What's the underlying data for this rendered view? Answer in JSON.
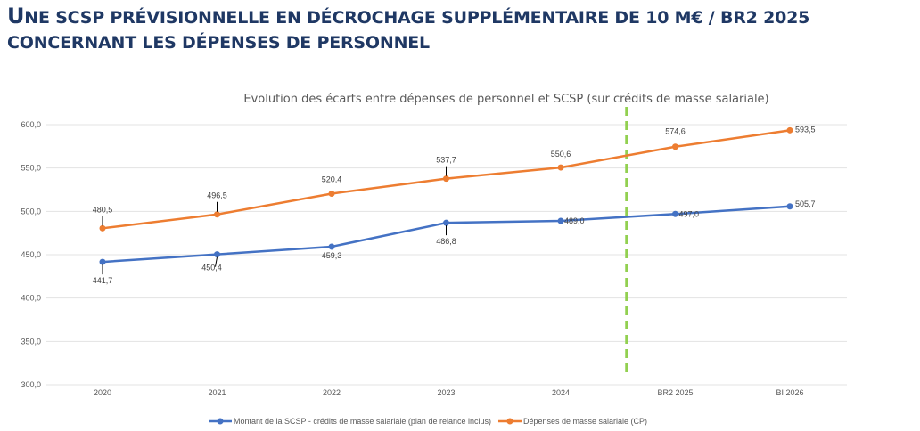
{
  "slide": {
    "title_line1_prefix_big": "U",
    "title_line1_rest": "NE SCSP PRÉVISIONNELLE EN DÉCROCHAGE SUPPLÉMENTAIRE DE 10 M€ / BR2 2025",
    "title_line2": "CONCERNANT LES DÉPENSES DE PERSONNEL"
  },
  "colors": {
    "title": "#1f3864",
    "series_scsp": "#4472c4",
    "series_depenses": "#ed7d31",
    "forecast_divider": "#92d050"
  },
  "chart_data": {
    "type": "line",
    "title": "Evolution des écarts entre dépenses de personnel et SCSP (sur crédits de masse salariale)",
    "xlabel": "",
    "ylabel": "",
    "categories": [
      "2020",
      "2021",
      "2022",
      "2023",
      "2024",
      "BR2 2025",
      "BI 2026"
    ],
    "ylim": [
      300,
      600
    ],
    "yticks": [
      300,
      350,
      400,
      450,
      500,
      550,
      600
    ],
    "ytick_labels": [
      "300,0",
      "350,0",
      "400,0",
      "450,0",
      "500,0",
      "550,0",
      "600,0"
    ],
    "grid": true,
    "legend_position": "bottom",
    "series": [
      {
        "name": "Montant de la SCSP - crédits de masse salariale (plan de relance inclus)",
        "color": "#4472c4",
        "values": [
          441.7,
          450.4,
          459.3,
          486.8,
          489.0,
          497.0,
          505.7
        ],
        "labels": [
          "441,7",
          "450,4",
          "459,3",
          "486,8",
          "489,0",
          "497,0",
          "505,7"
        ]
      },
      {
        "name": "Dépenses de masse salariale (CP)",
        "color": "#ed7d31",
        "values": [
          480.5,
          496.5,
          520.4,
          537.7,
          550.6,
          574.6,
          593.5
        ],
        "labels": [
          "480,5",
          "496,5",
          "520,4",
          "537,7",
          "550,6",
          "574,6",
          "593,5"
        ]
      }
    ],
    "annotations": [
      {
        "type": "vertical-dashed-line",
        "between": [
          "2024",
          "BR2 2025"
        ],
        "color": "#92d050",
        "meaning": "forecast divider"
      }
    ]
  }
}
